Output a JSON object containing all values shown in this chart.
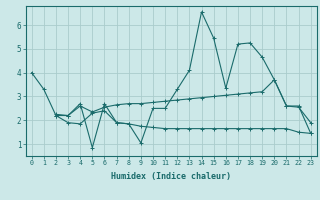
{
  "title": "",
  "xlabel": "Humidex (Indice chaleur)",
  "ylabel": "",
  "bg_color": "#cce8e8",
  "grid_color": "#aacccc",
  "line_color": "#1a6b6b",
  "x_ticks": [
    0,
    1,
    2,
    3,
    4,
    5,
    6,
    7,
    8,
    9,
    10,
    11,
    12,
    13,
    14,
    15,
    16,
    17,
    18,
    19,
    20,
    21,
    22,
    23
  ],
  "y_ticks": [
    1,
    2,
    3,
    4,
    5,
    6
  ],
  "ylim": [
    0.5,
    6.8
  ],
  "xlim": [
    -0.5,
    23.5
  ],
  "series": [
    {
      "x": [
        0,
        1,
        2,
        3,
        4,
        5,
        6,
        7,
        8,
        9,
        10,
        11,
        12,
        13,
        14,
        15,
        16,
        17,
        18,
        19,
        20,
        21,
        22,
        23
      ],
      "y": [
        4.0,
        3.3,
        2.2,
        2.2,
        2.7,
        0.85,
        2.7,
        1.9,
        1.85,
        1.05,
        2.5,
        2.5,
        3.3,
        4.1,
        6.55,
        5.45,
        3.35,
        5.2,
        5.25,
        4.65,
        3.7,
        2.6,
        2.55,
        1.9
      ]
    },
    {
      "x": [
        2,
        3,
        4,
        5,
        6,
        7,
        8,
        9,
        10,
        11,
        12,
        13,
        14,
        15,
        16,
        17,
        18,
        19,
        20,
        21,
        22,
        23
      ],
      "y": [
        2.25,
        2.2,
        2.6,
        2.35,
        2.55,
        2.65,
        2.7,
        2.7,
        2.75,
        2.8,
        2.85,
        2.9,
        2.95,
        3.0,
        3.05,
        3.1,
        3.15,
        3.2,
        3.7,
        2.6,
        2.6,
        1.45
      ]
    },
    {
      "x": [
        2,
        3,
        4,
        5,
        6,
        7,
        8,
        9,
        10,
        11,
        12,
        13,
        14,
        15,
        16,
        17,
        18,
        19,
        20,
        21,
        22,
        23
      ],
      "y": [
        2.2,
        1.9,
        1.85,
        2.3,
        2.4,
        1.9,
        1.85,
        1.75,
        1.7,
        1.65,
        1.65,
        1.65,
        1.65,
        1.65,
        1.65,
        1.65,
        1.65,
        1.65,
        1.65,
        1.65,
        1.5,
        1.45
      ]
    }
  ]
}
